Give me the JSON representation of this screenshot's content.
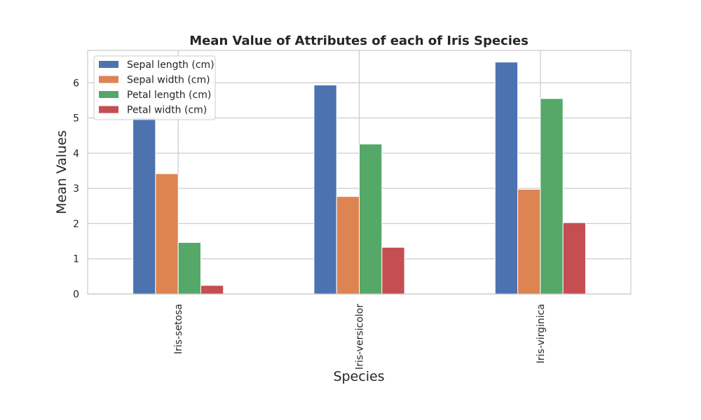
{
  "chart_data": {
    "type": "bar",
    "title": "Mean Value of Attributes of each of Iris Species",
    "xlabel": "Species",
    "ylabel": "Mean Values",
    "categories": [
      "Iris-setosa",
      "Iris-versicolor",
      "Iris-virginica"
    ],
    "series": [
      {
        "name": "Sepal length (cm)",
        "values": [
          5.006,
          5.936,
          6.588
        ],
        "color": "#4C72B0"
      },
      {
        "name": "Sepal width (cm)",
        "values": [
          3.418,
          2.77,
          2.974
        ],
        "color": "#DD8452"
      },
      {
        "name": "Petal length (cm)",
        "values": [
          1.464,
          4.26,
          5.552
        ],
        "color": "#55A868"
      },
      {
        "name": "Petal width (cm)",
        "values": [
          0.244,
          1.326,
          2.026
        ],
        "color": "#C44E52"
      }
    ],
    "ylim": [
      0,
      6.92
    ],
    "yticks": [
      0,
      1,
      2,
      3,
      4,
      5,
      6
    ],
    "grid": true,
    "legend_position": "top-left"
  }
}
